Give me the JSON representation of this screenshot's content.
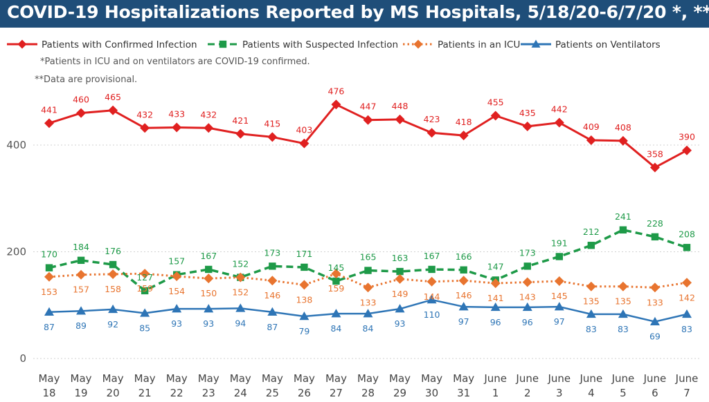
{
  "title": "COVID-19 Hospitalizations Reported by MS Hospitals, 5/18/20-6/7/20 *, **",
  "notes": {
    "icu_note": "*Patients in ICU and on ventilators are COVID-19 confirmed.",
    "provisional_note": "**Data are provisional."
  },
  "colors": {
    "title_bg": "#1f4e79",
    "confirmed": "#e02020",
    "suspected": "#1e9a48",
    "icu": "#e8742f",
    "ventilators": "#2e75b6",
    "grid": "#d0d0d0"
  },
  "chart_data": {
    "type": "line",
    "categories": [
      [
        "May",
        "18"
      ],
      [
        "May",
        "19"
      ],
      [
        "May",
        "20"
      ],
      [
        "May",
        "21"
      ],
      [
        "May",
        "22"
      ],
      [
        "May",
        "23"
      ],
      [
        "May",
        "24"
      ],
      [
        "May",
        "25"
      ],
      [
        "May",
        "26"
      ],
      [
        "May",
        "27"
      ],
      [
        "May",
        "28"
      ],
      [
        "May",
        "29"
      ],
      [
        "May",
        "30"
      ],
      [
        "May",
        "31"
      ],
      [
        "June",
        "1"
      ],
      [
        "June",
        "2"
      ],
      [
        "June",
        "3"
      ],
      [
        "June",
        "4"
      ],
      [
        "June",
        "5"
      ],
      [
        "June",
        "6"
      ],
      [
        "June",
        "7"
      ]
    ],
    "yticks": [
      0,
      200,
      400
    ],
    "ylim": [
      0,
      500
    ],
    "grid": "horizontal dotted",
    "legend_position": "top",
    "series": [
      {
        "name": "Patients with Confirmed Infection",
        "key": "confirmed",
        "marker": "diamond",
        "dash": "solid",
        "values": [
          441,
          460,
          465,
          432,
          433,
          432,
          421,
          415,
          403,
          476,
          447,
          448,
          423,
          418,
          455,
          435,
          442,
          409,
          408,
          358,
          390
        ]
      },
      {
        "name": "Patients with Suspected Infection",
        "key": "suspected",
        "marker": "square",
        "dash": "dashed",
        "values": [
          170,
          184,
          176,
          127,
          157,
          167,
          152,
          173,
          171,
          145,
          165,
          163,
          167,
          166,
          147,
          173,
          191,
          212,
          241,
          228,
          208
        ]
      },
      {
        "name": "Patients in an ICU",
        "key": "icu",
        "marker": "diamond",
        "dash": "dotted",
        "values": [
          153,
          157,
          158,
          159,
          154,
          150,
          152,
          146,
          138,
          159,
          133,
          149,
          144,
          146,
          141,
          143,
          145,
          135,
          135,
          133,
          142
        ]
      },
      {
        "name": "Patients on Ventilators",
        "key": "ventilators",
        "marker": "triangle",
        "dash": "solid",
        "values": [
          87,
          89,
          92,
          85,
          93,
          93,
          94,
          87,
          79,
          84,
          84,
          93,
          110,
          97,
          96,
          96,
          97,
          83,
          83,
          69,
          83
        ]
      }
    ]
  }
}
